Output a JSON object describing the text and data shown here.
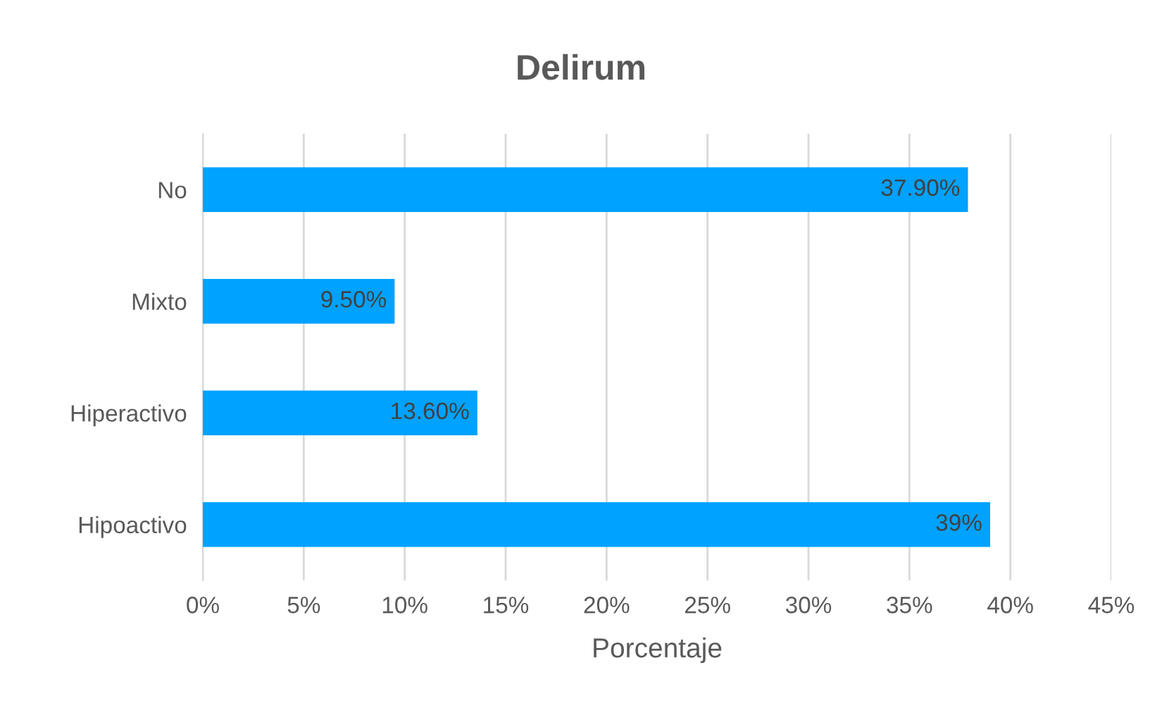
{
  "chart_data": {
    "type": "bar",
    "orientation": "horizontal",
    "title": "Delirum",
    "xlabel": "Porcentaje",
    "categories": [
      "No",
      "Mixto",
      "Hiperactivo",
      "Hipoactivo"
    ],
    "values": [
      37.9,
      9.5,
      13.6,
      39
    ],
    "color": "#00a2ff",
    "value_labels": [
      "37.90%",
      "9.50%",
      "13.60%",
      "39%"
    ],
    "xlim": [
      0,
      45
    ],
    "xticks": [
      {
        "value": 0,
        "label": "0%"
      },
      {
        "value": 5,
        "label": "5%"
      },
      {
        "value": 10,
        "label": "10%"
      },
      {
        "value": 15,
        "label": "15%"
      },
      {
        "value": 20,
        "label": "20%"
      },
      {
        "value": 25,
        "label": "25%"
      },
      {
        "value": 30,
        "label": "30%"
      },
      {
        "value": 35,
        "label": "35%"
      },
      {
        "value": 40,
        "label": "40%"
      },
      {
        "value": 45,
        "label": "45%"
      }
    ],
    "grid": "x",
    "legend": false
  }
}
